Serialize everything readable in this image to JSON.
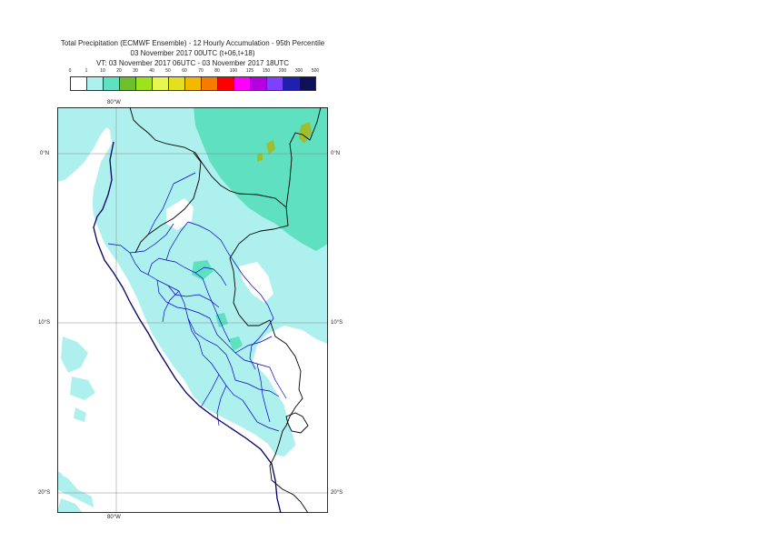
{
  "title": {
    "line1": "Total Precipitation (ECMWF Ensemble) - 12 Hourly Accumulation - 95th Percentile",
    "line2": "03 November 2017 00UTC (t+06,t+18)",
    "line3": "VT: 03 November 2017 06UTC - 03 November 2017 18UTC"
  },
  "legend": {
    "thresholds": [
      "0",
      "1",
      "10",
      "20",
      "30",
      "40",
      "50",
      "60",
      "70",
      "80",
      "100",
      "125",
      "150",
      "200",
      "300",
      "500"
    ],
    "colors": [
      "#ffffff",
      "#aef0ee",
      "#5fe0c0",
      "#6cbf2d",
      "#9de21b",
      "#e6f64e",
      "#e2e020",
      "#f5b800",
      "#f57c00",
      "#ff0000",
      "#ff00ff",
      "#b400e0",
      "#8040ff",
      "#2020b0",
      "#10105a"
    ]
  },
  "map": {
    "lon_top": "80°W",
    "lon_bottom": "80°W",
    "lat_labels": [
      "0°N",
      "10°S",
      "20°S"
    ]
  },
  "colors": {
    "border": "#000000",
    "regions": "#0000cc",
    "coast": "#000066",
    "grid": "#888888"
  }
}
